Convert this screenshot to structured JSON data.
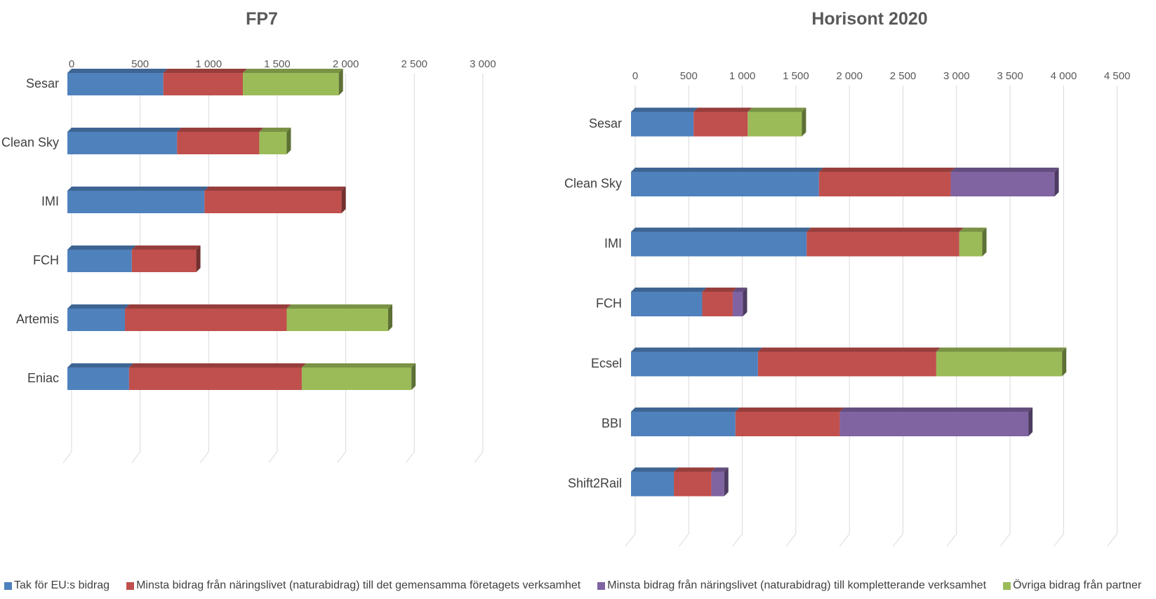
{
  "chart_data": [
    {
      "type": "bar",
      "orientation": "horizontal",
      "stacked": true,
      "three_d": true,
      "title": "FP7",
      "categories": [
        "Sesar",
        "Clean Sky",
        "IMI",
        "FCH",
        "Artemis",
        "Eniac"
      ],
      "xlim": [
        0,
        3000
      ],
      "ticks": [
        0,
        500,
        1000,
        1500,
        2000,
        2500,
        3000
      ],
      "tick_labels": [
        "0",
        "500",
        "1 000",
        "1 500",
        "2 000",
        "2 500",
        "3 000"
      ],
      "grid": true,
      "series": [
        {
          "name": "Tak för EU:s bidrag",
          "color": "#4F81BD",
          "values": [
            700,
            800,
            1000,
            470,
            420,
            450
          ]
        },
        {
          "name": "Minsta bidrag från näringslivet (naturabidrag) till det gemensamma företagets verksamhet",
          "color": "#C0504D",
          "values": [
            580,
            600,
            1000,
            470,
            1180,
            1260
          ]
        },
        {
          "name": "Minsta bidrag från näringslivet (naturabidrag) till kompletterande verksamhet",
          "color": "#8064A2",
          "values": [
            0,
            0,
            0,
            0,
            0,
            0
          ]
        },
        {
          "name": "Övriga bidrag från partner",
          "color": "#9BBB59",
          "values": [
            700,
            200,
            0,
            0,
            740,
            800
          ]
        }
      ]
    },
    {
      "type": "bar",
      "orientation": "horizontal",
      "stacked": true,
      "three_d": true,
      "title": "Horisont 2020",
      "categories": [
        "Sesar",
        "Clean Sky",
        "IMI",
        "FCH",
        "Ecsel",
        "BBI",
        "Shift2Rail"
      ],
      "xlim": [
        0,
        4500
      ],
      "ticks": [
        0,
        500,
        1000,
        1500,
        2000,
        2500,
        3000,
        3500,
        4000,
        4500
      ],
      "tick_labels": [
        "0",
        "500",
        "1 000",
        "1 500",
        "2 000",
        "2 500",
        "3 000",
        "3 500",
        "4 000",
        "4 500"
      ],
      "grid": true,
      "series": [
        {
          "name": "Tak för EU:s bidrag",
          "color": "#4F81BD",
          "values": [
            585,
            1755,
            1640,
            665,
            1185,
            975,
            400
          ]
        },
        {
          "name": "Minsta bidrag från näringslivet (naturabidrag) till det gemensamma företagets verksamhet",
          "color": "#C0504D",
          "values": [
            505,
            1230,
            1425,
            285,
            1665,
            975,
            350
          ]
        },
        {
          "name": "Minsta bidrag från näringslivet (naturabidrag) till kompletterande verksamhet",
          "color": "#8064A2",
          "values": [
            0,
            970,
            0,
            95,
            0,
            1760,
            120
          ]
        },
        {
          "name": "Övriga bidrag från partner",
          "color": "#9BBB59",
          "values": [
            505,
            0,
            215,
            0,
            1175,
            0,
            0
          ]
        }
      ]
    }
  ],
  "legend": [
    {
      "label": "Tak för EU:s bidrag",
      "color": "#4F81BD"
    },
    {
      "label": "Minsta bidrag från näringslivet (naturabidrag) till det gemensamma företagets verksamhet",
      "color": "#C0504D"
    },
    {
      "label": "Minsta bidrag från näringslivet (naturabidrag) till kompletterande verksamhet",
      "color": "#8064A2"
    },
    {
      "label": "Övriga bidrag från partner",
      "color": "#9BBB59"
    }
  ]
}
